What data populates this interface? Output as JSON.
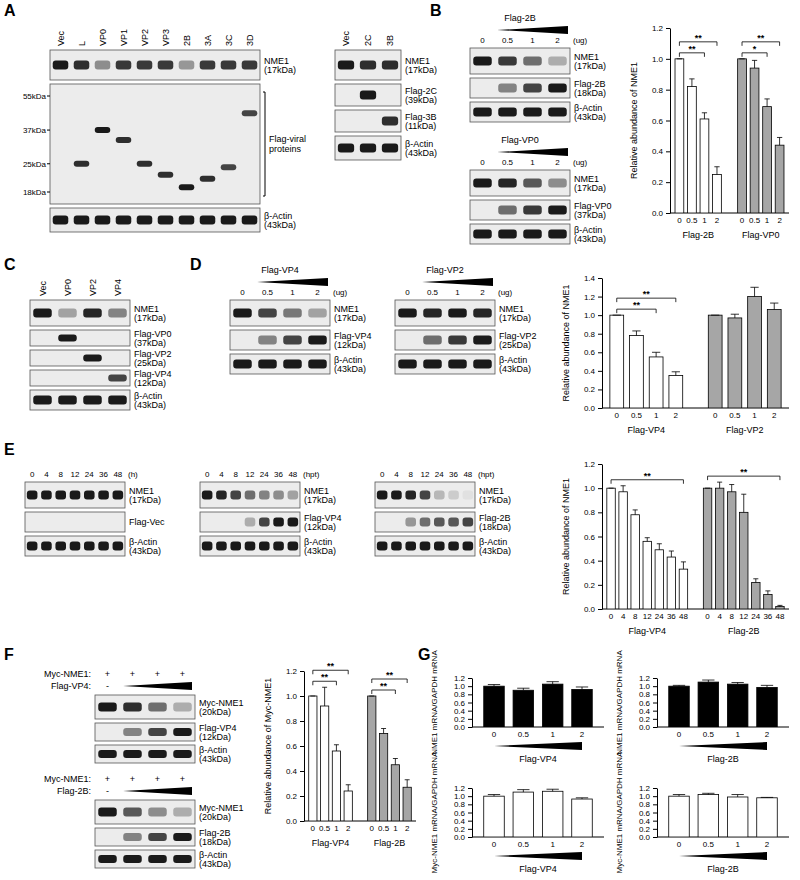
{
  "panels": [
    "A",
    "B",
    "C",
    "D",
    "E",
    "F",
    "G"
  ],
  "blots": [
    {
      "lanes": [
        "Vec",
        "L",
        "VP0",
        "VP1",
        "VP2",
        "VP3",
        "2B",
        "3A",
        "3C",
        "3D"
      ],
      "mw_markers": [
        {
          "value": 55,
          "label": "55kDa"
        },
        {
          "value": 37,
          "label": "37kDa"
        },
        {
          "value": 25,
          "label": "25kDa"
        },
        {
          "value": 18,
          "label": "18kDa"
        }
      ],
      "rows": [
        {
          "label": "NME1",
          "size": "(17kDa)",
          "intensity": [
            1,
            0.9,
            0.45,
            0.85,
            0.85,
            0.85,
            0.4,
            0.85,
            0.85,
            0.85
          ]
        },
        {
          "label": "Flag-viral proteins",
          "kda": [
            null,
            25,
            37,
            33,
            25,
            22,
            19,
            21,
            24,
            45
          ],
          "intensity": [
            0,
            0.9,
            1,
            0.9,
            0.9,
            0.9,
            1,
            0.9,
            0.8,
            0.8
          ]
        },
        {
          "label": "β-Actin",
          "size": "(43kDa)",
          "intensity": [
            1,
            1,
            1,
            1,
            1,
            1,
            1,
            1,
            1,
            1
          ]
        }
      ]
    },
    {
      "lanes": [
        "Vec",
        "2C",
        "3B"
      ],
      "rows": [
        {
          "label": "NME1",
          "size": "(17kDa)",
          "intensity": [
            1,
            0.9,
            0.9
          ]
        },
        {
          "label": "Flag-2C",
          "size": "(39kDa)",
          "intensity": [
            0,
            1,
            0
          ]
        },
        {
          "label": "Flag-3B",
          "size": "(11kDa)",
          "intensity": [
            0,
            0,
            0.9
          ]
        },
        {
          "label": "β-Actin",
          "size": "(43kDa)",
          "intensity": [
            1,
            1,
            1
          ]
        }
      ]
    },
    {
      "title": "Flag-2B",
      "lanes": [
        "0",
        "0.5",
        "1",
        "2"
      ],
      "unit": "(ug)",
      "rows": [
        {
          "label": "NME1",
          "size": "(17kDa)",
          "intensity": [
            1,
            0.85,
            0.6,
            0.3
          ]
        },
        {
          "label": "Flag-2B",
          "size": "(18kDa)",
          "intensity": [
            0,
            0.5,
            0.8,
            1
          ]
        },
        {
          "label": "β-Actin",
          "size": "(43kDa)",
          "intensity": [
            1,
            1,
            1,
            1
          ]
        }
      ]
    },
    {
      "title": "Flag-VP0",
      "lanes": [
        "0",
        "0.5",
        "1",
        "2"
      ],
      "unit": "(ug)",
      "rows": [
        {
          "label": "NME1",
          "size": "(17kDa)",
          "intensity": [
            1,
            0.95,
            0.7,
            0.45
          ]
        },
        {
          "label": "Flag-VP0",
          "size": "(37kDa)",
          "intensity": [
            0,
            0.6,
            0.85,
            1
          ]
        },
        {
          "label": "β-Actin",
          "size": "(43kDa)",
          "intensity": [
            1,
            1,
            1,
            1
          ]
        }
      ]
    },
    {
      "lanes": [
        "Vec",
        "VP0",
        "VP2",
        "VP4"
      ],
      "rows": [
        {
          "label": "NME1",
          "size": "(17kDa)",
          "intensity": [
            1,
            0.35,
            0.95,
            0.5
          ]
        },
        {
          "label": "Flag-VP0",
          "size": "(37kDa)",
          "intensity": [
            0,
            1,
            0,
            0
          ]
        },
        {
          "label": "Flag-VP2",
          "size": "(25kDa)",
          "intensity": [
            0,
            0,
            1,
            0
          ]
        },
        {
          "label": "Flag-VP4",
          "size": "(12kDa)",
          "intensity": [
            0,
            0,
            0,
            0.8
          ]
        },
        {
          "label": "β-Actin",
          "size": "(43kDa)",
          "intensity": [
            1,
            1,
            1,
            1
          ]
        }
      ]
    },
    {
      "title": "Flag-VP4",
      "lanes": [
        "0",
        "0.5",
        "1",
        "2"
      ],
      "unit": "(ug)",
      "rows": [
        {
          "label": "NME1",
          "size": "(17kDa)",
          "intensity": [
            1,
            0.8,
            0.55,
            0.35
          ]
        },
        {
          "label": "Flag-VP4",
          "size": "(12kDa)",
          "intensity": [
            0,
            0.5,
            0.8,
            1
          ]
        },
        {
          "label": "β-Actin",
          "size": "(43kDa)",
          "intensity": [
            1,
            1,
            1,
            1
          ]
        }
      ]
    },
    {
      "title": "Flag-VP2",
      "lanes": [
        "0",
        "0.5",
        "1",
        "2"
      ],
      "unit": "(ug)",
      "rows": [
        {
          "label": "NME1",
          "size": "(17kDa)",
          "intensity": [
            1,
            0.95,
            1,
            0.95
          ]
        },
        {
          "label": "Flag-VP2",
          "size": "(25kDa)",
          "intensity": [
            0,
            0.6,
            0.85,
            1
          ]
        },
        {
          "label": "β-Actin",
          "size": "(43kDa)",
          "intensity": [
            1,
            1,
            1,
            1
          ]
        }
      ]
    },
    {
      "lanes": [
        "0",
        "4",
        "8",
        "12",
        "24",
        "36",
        "48"
      ],
      "unit": "(h)",
      "rows": [
        {
          "label": "NME1",
          "size": "(17kDa)",
          "intensity": [
            1,
            1,
            1,
            1,
            1,
            1,
            1
          ]
        },
        {
          "label": "Flag-Vec",
          "intensity": [
            0,
            0,
            0,
            0,
            0,
            0,
            0
          ]
        },
        {
          "label": "β-Actin",
          "size": "(43kDa)",
          "intensity": [
            1,
            1,
            1,
            1,
            1,
            1,
            1
          ]
        }
      ]
    },
    {
      "lanes": [
        "0",
        "4",
        "8",
        "12",
        "24",
        "36",
        "48"
      ],
      "unit": "(hpt)",
      "rows": [
        {
          "label": "NME1",
          "size": "(17kDa)",
          "intensity": [
            1,
            0.95,
            0.8,
            0.6,
            0.5,
            0.45,
            0.35
          ]
        },
        {
          "label": "Flag-VP4",
          "size": "(12kDa)",
          "intensity": [
            0,
            0,
            0,
            0.3,
            0.8,
            1,
            1
          ]
        },
        {
          "label": "β-Actin",
          "size": "(43kDa)",
          "intensity": [
            1,
            1,
            1,
            1,
            1,
            1,
            1
          ]
        }
      ]
    },
    {
      "lanes": [
        "0",
        "4",
        "8",
        "12",
        "24",
        "36",
        "48"
      ],
      "unit": "(hpt)",
      "rows": [
        {
          "label": "NME1",
          "size": "(17kDa)",
          "intensity": [
            1,
            1,
            0.95,
            0.8,
            0.25,
            0.15,
            0.05
          ]
        },
        {
          "label": "Flag-2B",
          "size": "(18kDa)",
          "intensity": [
            0,
            0,
            0.4,
            0.6,
            0.7,
            0.7,
            0.8
          ]
        },
        {
          "label": "β-Actin",
          "size": "(43kDa)",
          "intensity": [
            1,
            1,
            1,
            1,
            1,
            1,
            1
          ]
        }
      ]
    },
    {
      "conditions": [
        {
          "label": "Myc-NME1:",
          "marks": [
            "+",
            "+",
            "+",
            "+"
          ]
        },
        {
          "label": "Flag-VP4:",
          "marks": [
            "-"
          ]
        }
      ],
      "rows": [
        {
          "label": "Myc-NME1",
          "size": "(20kDa)",
          "intensity": [
            1,
            0.9,
            0.6,
            0.3
          ]
        },
        {
          "label": "Flag-VP4",
          "size": "(12kDa)",
          "intensity": [
            0,
            0.5,
            0.8,
            1
          ]
        },
        {
          "label": "β-Actin",
          "size": "(43kDa)",
          "intensity": [
            1,
            1,
            1,
            1
          ]
        }
      ]
    },
    {
      "conditions": [
        {
          "label": "Myc-NME1:",
          "marks": [
            "+",
            "+",
            "+",
            "+"
          ]
        },
        {
          "label": "Flag-2B:",
          "marks": [
            "-"
          ]
        }
      ],
      "rows": [
        {
          "label": "Myc-NME1",
          "size": "(20kDa)",
          "intensity": [
            1,
            0.7,
            0.45,
            0.3
          ]
        },
        {
          "label": "Flag-2B",
          "size": "(18kDa)",
          "intensity": [
            0,
            0.5,
            0.8,
            1
          ]
        },
        {
          "label": "β-Actin",
          "size": "(43kDa)",
          "intensity": [
            1,
            1,
            1,
            1
          ]
        }
      ]
    }
  ],
  "chart_data": [
    {
      "type": "bar",
      "ylabel": "Relative abundance of NME1",
      "categories": [
        "0",
        "0.5",
        "1",
        "2"
      ],
      "series": [
        {
          "name": "Flag-2B",
          "color": "#ffffff",
          "values": [
            1,
            0.82,
            0.61,
            0.25
          ],
          "errors": [
            0,
            0.05,
            0.04,
            0.05
          ]
        },
        {
          "name": "Flag-VP0",
          "color": "#a6a6a6",
          "values": [
            1,
            0.94,
            0.69,
            0.44
          ],
          "errors": [
            0,
            0.05,
            0.05,
            0.05
          ]
        }
      ],
      "ylim": [
        0,
        1.2
      ],
      "yticks": [
        {
          "value": 0,
          "label": "0.0"
        },
        0.2,
        0.4,
        0.6,
        0.8,
        {
          "value": 1,
          "label": "1.0"
        },
        1.2
      ],
      "annotations": [
        {
          "series": 0,
          "from": 0,
          "to": 2,
          "label": "**"
        },
        {
          "series": 0,
          "from": 0,
          "to": 3,
          "label": "**"
        },
        {
          "series": 1,
          "from": 0,
          "to": 2,
          "label": "*"
        },
        {
          "series": 1,
          "from": 0,
          "to": 3,
          "label": "**"
        }
      ]
    },
    {
      "type": "bar",
      "ylabel": "Relative abundance of NME1",
      "categories": [
        "0",
        "0.5",
        "1",
        "2"
      ],
      "series": [
        {
          "name": "Flag-VP4",
          "color": "#ffffff",
          "values": [
            1,
            0.78,
            0.55,
            0.35
          ],
          "errors": [
            0,
            0.05,
            0.05,
            0.04
          ]
        },
        {
          "name": "Flag-VP2",
          "color": "#a6a6a6",
          "values": [
            1,
            0.97,
            1.2,
            1.06
          ],
          "errors": [
            0,
            0.04,
            0.1,
            0.07
          ]
        }
      ],
      "ylim": [
        0,
        1.4
      ],
      "yticks": [
        {
          "value": 0,
          "label": "0.0"
        },
        0.2,
        0.4,
        0.6,
        0.8,
        {
          "value": 1,
          "label": "1.0"
        },
        1.2,
        1.4
      ],
      "annotations": [
        {
          "series": 0,
          "from": 0,
          "to": 2,
          "label": "**"
        },
        {
          "series": 0,
          "from": 0,
          "to": 3,
          "label": "**"
        }
      ]
    },
    {
      "type": "bar",
      "ylabel": "Relative abundance of NME1",
      "categories": [
        "0",
        "4",
        "8",
        "12",
        "24",
        "36",
        "48"
      ],
      "series": [
        {
          "name": "Flag-VP4",
          "color": "#ffffff",
          "values": [
            1,
            0.97,
            0.78,
            0.56,
            0.49,
            0.43,
            0.33
          ],
          "errors": [
            0,
            0.05,
            0.04,
            0.03,
            0.05,
            0.05,
            0.06
          ]
        },
        {
          "name": "Flag-2B",
          "color": "#a6a6a6",
          "values": [
            1,
            1,
            0.97,
            0.8,
            0.22,
            0.12,
            0.02
          ],
          "errors": [
            0,
            0.05,
            0.06,
            0.15,
            0.03,
            0.03,
            0.01
          ]
        }
      ],
      "ylim": [
        0,
        1.2
      ],
      "yticks": [
        {
          "value": 0,
          "label": "0.0"
        },
        0.2,
        0.4,
        0.6,
        0.8,
        {
          "value": 1,
          "label": "1.0"
        },
        1.2
      ],
      "annotations": [
        {
          "series": 0,
          "from": 0,
          "to": 6,
          "label": "**"
        },
        {
          "series": 1,
          "from": 0,
          "to": 6,
          "label": "**"
        }
      ]
    },
    {
      "type": "bar",
      "ylabel": "Relative abundance of Myc-NME1",
      "categories": [
        "0",
        "0.5",
        "1",
        "2"
      ],
      "series": [
        {
          "name": "Flag-VP4",
          "color": "#ffffff",
          "values": [
            1,
            0.92,
            0.56,
            0.24
          ],
          "errors": [
            0,
            0.15,
            0.05,
            0.05
          ]
        },
        {
          "name": "Flag-2B",
          "color": "#a6a6a6",
          "values": [
            1,
            0.7,
            0.45,
            0.27
          ],
          "errors": [
            0,
            0.04,
            0.05,
            0.06
          ]
        }
      ],
      "ylim": [
        0,
        1.2
      ],
      "yticks": [
        {
          "value": 0,
          "label": "0.0"
        },
        0.2,
        0.4,
        0.6,
        0.8,
        {
          "value": 1,
          "label": "1.0"
        },
        1.2
      ],
      "annotations": [
        {
          "series": 0,
          "from": 0,
          "to": 2,
          "label": "**"
        },
        {
          "series": 0,
          "from": 0,
          "to": 3,
          "label": "**"
        },
        {
          "series": 1,
          "from": 0,
          "to": 2,
          "label": "**"
        },
        {
          "series": 1,
          "from": 0,
          "to": 3,
          "label": "**"
        }
      ]
    },
    {
      "type": "bar",
      "ylabel": "NME1 mRNA/GAPDH mRNA",
      "categories": [
        "0",
        "0.5",
        "1",
        "2"
      ],
      "series": [
        {
          "name": "Flag-VP4",
          "color": "#000000",
          "values": [
            1,
            0.9,
            1.05,
            0.92
          ],
          "errors": [
            0.04,
            0.05,
            0.06,
            0.06
          ]
        }
      ],
      "ylim": [
        0,
        1.2
      ],
      "yticks": [
        {
          "value": 0,
          "label": "0.0"
        },
        0.2,
        0.4,
        0.6,
        0.8,
        {
          "value": 1,
          "label": "1.0"
        },
        1.2
      ]
    },
    {
      "type": "bar",
      "ylabel": "NME1 mRNA/GAPDH mRNA",
      "categories": [
        "0",
        "0.5",
        "1",
        "2"
      ],
      "series": [
        {
          "name": "Flag-2B",
          "color": "#000000",
          "values": [
            1,
            1.1,
            1.05,
            0.97
          ],
          "errors": [
            0.02,
            0.05,
            0.04,
            0.05
          ]
        }
      ],
      "ylim": [
        0,
        1.2
      ],
      "yticks": [
        {
          "value": 0,
          "label": "0.0"
        },
        0.2,
        0.4,
        0.6,
        0.8,
        {
          "value": 1,
          "label": "1.0"
        },
        1.2
      ]
    },
    {
      "type": "bar",
      "ylabel": "Myc-NME1 mRNA/GAPDH mRNA",
      "categories": [
        "0",
        "0.5",
        "1",
        "2"
      ],
      "series": [
        {
          "name": "Flag-VP4",
          "color": "#ffffff",
          "values": [
            1,
            1.1,
            1.12,
            0.93
          ],
          "errors": [
            0.04,
            0.06,
            0.05,
            0.03
          ]
        }
      ],
      "ylim": [
        0,
        1.2
      ],
      "yticks": [
        {
          "value": 0,
          "label": "0.0"
        },
        0.2,
        0.4,
        0.6,
        0.8,
        {
          "value": 1,
          "label": "1.0"
        },
        1.2
      ]
    },
    {
      "type": "bar",
      "ylabel": "Myc-NME1 mRNA/GAPDH mRNA",
      "categories": [
        "0",
        "0.5",
        "1",
        "2"
      ],
      "series": [
        {
          "name": "Flag-2B",
          "color": "#ffffff",
          "values": [
            1,
            1.04,
            0.98,
            0.96
          ],
          "errors": [
            0.04,
            0.03,
            0.06,
            0.01
          ]
        }
      ],
      "ylim": [
        0,
        1.2
      ],
      "yticks": [
        {
          "value": 0,
          "label": "0.0"
        },
        0.2,
        0.4,
        0.6,
        0.8,
        {
          "value": 1,
          "label": "1.0"
        },
        1.2
      ]
    }
  ]
}
